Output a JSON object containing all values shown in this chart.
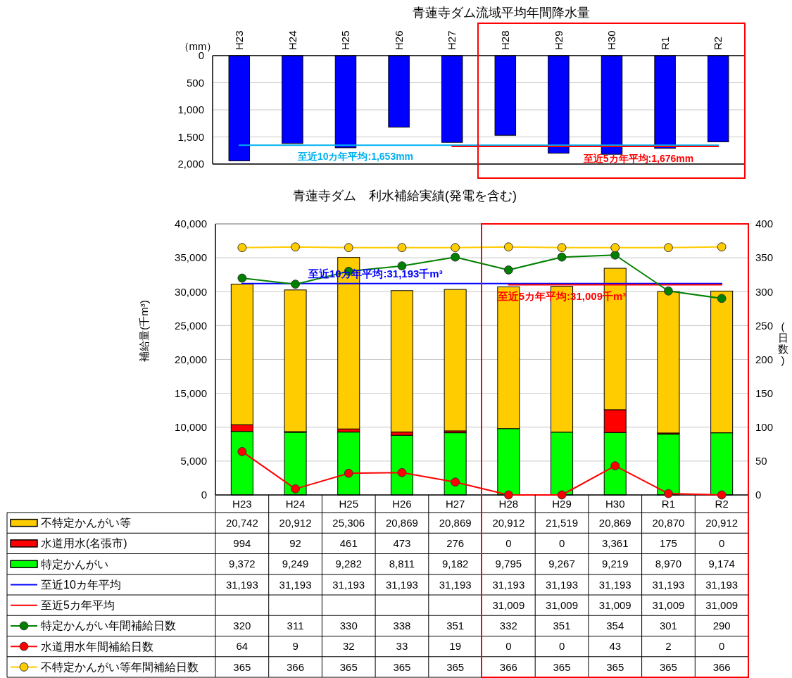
{
  "chart_data": [
    {
      "type": "bar",
      "title": "青蓮寺ダム流域平均年間降水量",
      "ylabel": "（mm）",
      "categories": [
        "H23",
        "H24",
        "H25",
        "H26",
        "H27",
        "H28",
        "H29",
        "H30",
        "R1",
        "R2"
      ],
      "series": [
        {
          "color": "#0000ff",
          "values": [
            1940,
            1620,
            1700,
            1320,
            1600,
            1470,
            1800,
            1820,
            1710,
            1590
          ]
        },
        {
          "type": "line",
          "color": "#00b0f0",
          "values": [
            1653,
            1653,
            1653,
            1653,
            1653,
            1653,
            1653,
            1653,
            1653,
            1653
          ]
        },
        {
          "type": "line",
          "color": "#ff0000",
          "values": [
            null,
            null,
            null,
            null,
            1676,
            1676,
            1676,
            1676,
            1676,
            1676
          ]
        }
      ],
      "ylim": [
        2000,
        0
      ],
      "yticks": [
        {
          "value": 0,
          "label": "0"
        },
        500,
        {
          "value": 1000,
          "label": "1,000"
        },
        {
          "value": 1500,
          "label": "1,500"
        },
        {
          "value": 2000,
          "label": "2,000"
        }
      ],
      "grid": "y",
      "annotations": [
        {
          "text": "至近10カ年平均:1,653mm",
          "x": "H25",
          "y": 1653
        },
        {
          "text": "至近5カ年平均:1,676mm",
          "x": "H30",
          "y": 1676
        }
      ]
    },
    {
      "type": "bar",
      "title": "青蓮寺ダム　利水補給実績(発電を含む)",
      "ylabel": "補給量(千m³)",
      "y2label": "(日数)",
      "categories": [
        "H23",
        "H24",
        "H25",
        "H26",
        "H27",
        "H28",
        "H29",
        "H30",
        "R1",
        "R2"
      ],
      "stacked": true,
      "series": [
        {
          "name": "特定かんがい",
          "color": "#00ff00",
          "values": [
            9372,
            9249,
            9282,
            8811,
            9182,
            9795,
            9267,
            9219,
            8970,
            9174
          ],
          "value_labels": [
            "9,372",
            "9,249",
            "9,282",
            "8,811",
            "9,182",
            "9,795",
            "9,267",
            "9,219",
            "8,970",
            "9,174"
          ]
        },
        {
          "name": "水道用水(名張市)",
          "color": "#ff0000",
          "values": [
            994,
            92,
            461,
            473,
            276,
            0,
            0,
            3361,
            175,
            0
          ],
          "value_labels": [
            "994",
            "92",
            "461",
            "473",
            "276",
            "0",
            "0",
            "3,361",
            "175",
            "0"
          ]
        },
        {
          "name": "不特定かんがい等",
          "color": "#ffcc00",
          "values": [
            20742,
            20912,
            25306,
            20869,
            20869,
            20912,
            21519,
            20869,
            20870,
            20912
          ],
          "value_labels": [
            "20,742",
            "20,912",
            "25,306",
            "20,869",
            "20,869",
            "20,912",
            "21,519",
            "20,869",
            "20,870",
            "20,912"
          ]
        },
        {
          "name": "至近10カ年平均",
          "type": "line",
          "color": "#0000ff",
          "values": [
            31193,
            31193,
            31193,
            31193,
            31193,
            31193,
            31193,
            31193,
            31193,
            31193
          ],
          "value_labels": [
            "31,193",
            "31,193",
            "31,193",
            "31,193",
            "31,193",
            "31,193",
            "31,193",
            "31,193",
            "31,193",
            "31,193"
          ]
        },
        {
          "name": "至近5カ年平均",
          "type": "line",
          "color": "#ff0000",
          "values": [
            null,
            null,
            null,
            null,
            null,
            31009,
            31009,
            31009,
            31009,
            31009
          ],
          "value_labels": [
            null,
            null,
            null,
            null,
            null,
            "31,009",
            "31,009",
            "31,009",
            "31,009",
            "31,009"
          ]
        },
        {
          "name": "特定かんがい年間補給日数",
          "type": "line",
          "axis": "y2",
          "marker": "circle",
          "color": "#008000",
          "values": [
            320,
            311,
            330,
            338,
            351,
            332,
            351,
            354,
            301,
            290
          ],
          "value_labels": [
            "320",
            "311",
            "330",
            "338",
            "351",
            "332",
            "351",
            "354",
            "301",
            "290"
          ]
        },
        {
          "name": "水道用水年間補給日数",
          "type": "line",
          "axis": "y2",
          "marker": "circle",
          "color": "#ff0000",
          "values": [
            64,
            9,
            32,
            33,
            19,
            0,
            0,
            43,
            2,
            0
          ],
          "value_labels": [
            "64",
            "9",
            "32",
            "33",
            "19",
            "0",
            "0",
            "43",
            "2",
            "0"
          ]
        },
        {
          "name": "不特定かんがい等年間補給日数",
          "type": "line",
          "axis": "y2",
          "marker": "circle",
          "color": "#ffcc00",
          "values": [
            365,
            366,
            365,
            365,
            365,
            366,
            365,
            365,
            365,
            366
          ],
          "value_labels": [
            "365",
            "366",
            "365",
            "365",
            "365",
            "366",
            "365",
            "365",
            "365",
            "366"
          ]
        }
      ],
      "ylim": [
        0,
        40000
      ],
      "yticks": [
        {
          "value": 0,
          "label": "0"
        },
        {
          "value": 5000,
          "label": "5,000"
        },
        {
          "value": 10000,
          "label": "10,000"
        },
        {
          "value": 15000,
          "label": "15,000"
        },
        {
          "value": 20000,
          "label": "20,000"
        },
        {
          "value": 25000,
          "label": "25,000"
        },
        {
          "value": 30000,
          "label": "30,000"
        },
        {
          "value": 35000,
          "label": "35,000"
        },
        {
          "value": 40000,
          "label": "40,000"
        }
      ],
      "y2lim": [
        0,
        400
      ],
      "y2ticks": [
        {
          "value": 0,
          "label": "0"
        },
        50,
        100,
        150,
        200,
        250,
        300,
        350,
        400
      ],
      "grid": "y",
      "legend": "bottom",
      "annotations": [
        {
          "text": "至近10カ年平均:31,193千m³",
          "x": "H25",
          "y": 31193
        },
        {
          "text": "至近5カ年平均:31,009千m³",
          "x": "H29",
          "y": 31009
        }
      ]
    }
  ]
}
